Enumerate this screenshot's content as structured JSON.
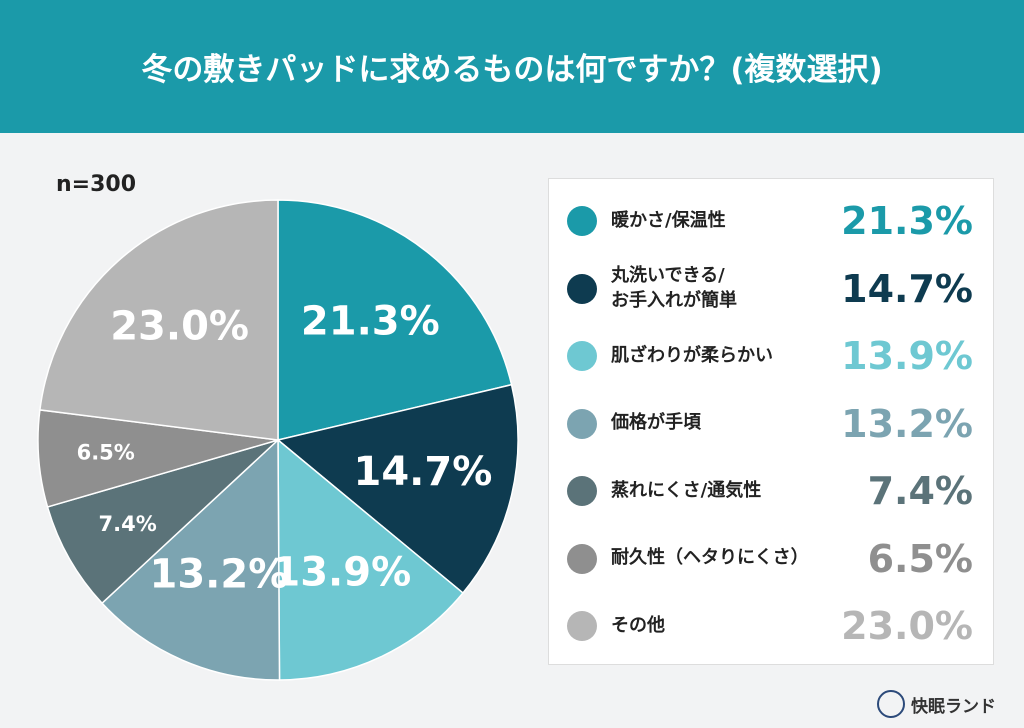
{
  "chart_data": {
    "type": "pie",
    "title": "冬の敷きパッドに求めるものは何ですか？(複数選択)",
    "subtitle": "n=300",
    "categories": [
      "暖かさ/保温性",
      "丸洗いできる/\nお手入れが簡単",
      "肌ざわりが柔らかい",
      "価格が手頃",
      "蒸れにくさ/通気性",
      "耐久性（ヘタりにくさ）",
      "その他"
    ],
    "values": [
      21.3,
      14.7,
      13.9,
      13.2,
      7.4,
      6.5,
      23.0
    ],
    "value_labels": [
      "21.3%",
      "14.7%",
      "13.9%",
      "13.2%",
      "7.4%",
      "6.5%",
      "23.0%"
    ],
    "colors": [
      "#1b9aa9",
      "#0e3b50",
      "#6ec8d2",
      "#7ca4b1",
      "#5b7379",
      "#8f8f8f",
      "#b6b6b6"
    ]
  },
  "footer": {
    "brand": "快眠ランド"
  }
}
